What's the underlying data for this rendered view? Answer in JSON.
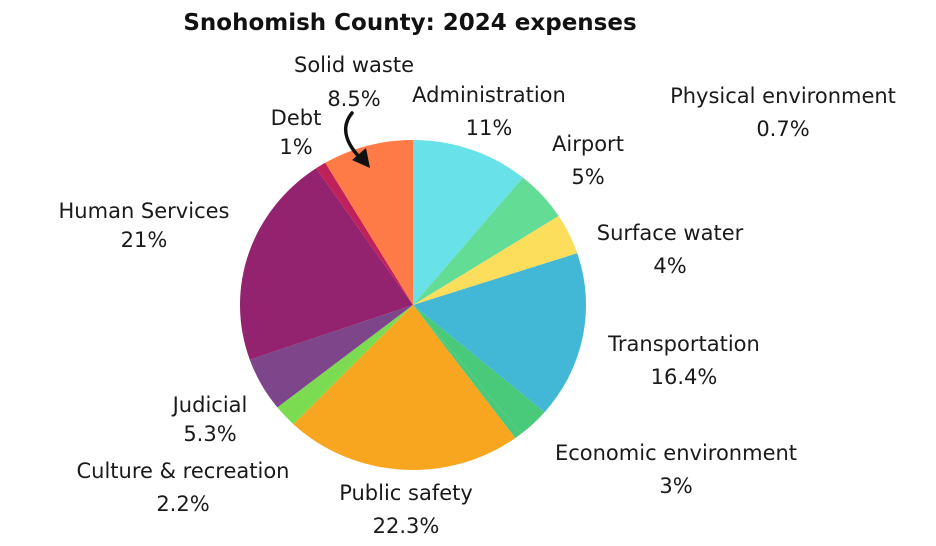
{
  "chart_data": {
    "type": "pie",
    "title": "Snohomish County: 2024 expenses",
    "slices": [
      {
        "label": "Administration",
        "value": 11,
        "value_label": "11%",
        "color": "#68e1e8"
      },
      {
        "label": "Airport",
        "value": 5,
        "value_label": "5%",
        "color": "#63dc96"
      },
      {
        "label": "Surface water",
        "value": 4,
        "value_label": "4%",
        "color": "#fddd5c"
      },
      {
        "label": "Transportation",
        "value": 16.4,
        "value_label": "16.4%",
        "color": "#42b8d6"
      },
      {
        "label": "Economic environment",
        "value": 3,
        "value_label": "3%",
        "color": "#49c97a"
      },
      {
        "label": "Physical environment",
        "value": 0.7,
        "value_label": "0.7%",
        "color": "#49c97a"
      },
      {
        "label": "Public safety",
        "value": 22.3,
        "value_label": "22.3%",
        "color": "#f8a620"
      },
      {
        "label": "Culture & recreation",
        "value": 2.2,
        "value_label": "2.2%",
        "color": "#7bdc52"
      },
      {
        "label": "Judicial",
        "value": 5.3,
        "value_label": "5.3%",
        "color": "#7d468b"
      },
      {
        "label": "Human Services",
        "value": 21,
        "value_label": "21%",
        "color": "#93236f"
      },
      {
        "label": "Debt",
        "value": 1,
        "value_label": "1%",
        "color": "#c1215a"
      },
      {
        "label": "Solid waste",
        "value": 8.5,
        "value_label": "8.5%",
        "color": "#fe7a47"
      }
    ],
    "legend": "none"
  }
}
